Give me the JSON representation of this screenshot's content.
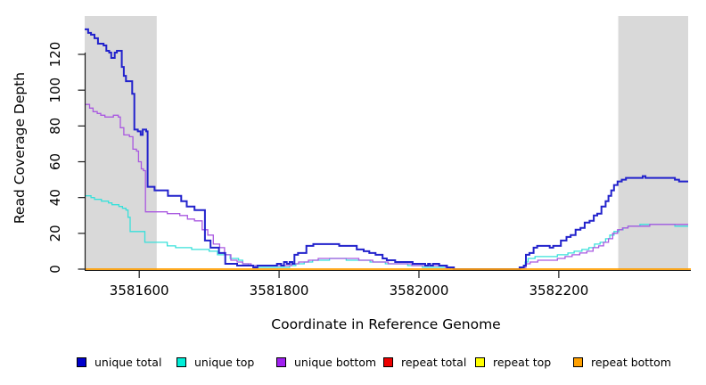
{
  "chart_data": {
    "type": "line",
    "subtype": "step-after",
    "title": "",
    "xlabel": "Coordinate in Reference Genome",
    "ylabel": "Read Coverage Depth",
    "xlim": [
      3581522,
      3582385
    ],
    "ylim": [
      0,
      141
    ],
    "x_ticks": [
      3581600,
      3581800,
      3582000,
      3582200
    ],
    "y_ticks": [
      0,
      20,
      40,
      60,
      80,
      100,
      120
    ],
    "grid": false,
    "legend_position": "bottom",
    "plot_bg": "#ffffff",
    "shaded_regions": [
      {
        "x0": 3581522,
        "x1": 3581625,
        "color": "#d9d9d9"
      },
      {
        "x0": 3582285,
        "x1": 3582385,
        "color": "#d9d9d9"
      }
    ],
    "draw_order": [
      "unique top",
      "unique bottom",
      "unique total",
      "repeat total",
      "repeat top",
      "repeat bottom"
    ],
    "series": [
      {
        "name": "unique total",
        "color": "#2222cc",
        "legend_color": "#0000cc",
        "width": 2,
        "points": [
          [
            3581522,
            134
          ],
          [
            3581527,
            132
          ],
          [
            3581531,
            131
          ],
          [
            3581536,
            129
          ],
          [
            3581541,
            126
          ],
          [
            3581549,
            125
          ],
          [
            3581553,
            122
          ],
          [
            3581557,
            121
          ],
          [
            3581560,
            118
          ],
          [
            3581565,
            121
          ],
          [
            3581568,
            122
          ],
          [
            3581575,
            113
          ],
          [
            3581578,
            108
          ],
          [
            3581581,
            105
          ],
          [
            3581590,
            98
          ],
          [
            3581593,
            78
          ],
          [
            3581598,
            77
          ],
          [
            3581602,
            75
          ],
          [
            3581605,
            78
          ],
          [
            3581610,
            77
          ],
          [
            3581612,
            46
          ],
          [
            3581622,
            44
          ],
          [
            3581641,
            41
          ],
          [
            3581660,
            38
          ],
          [
            3581668,
            35
          ],
          [
            3581679,
            33
          ],
          [
            3581694,
            16
          ],
          [
            3581702,
            12
          ],
          [
            3581714,
            9
          ],
          [
            3581723,
            3
          ],
          [
            3581740,
            2
          ],
          [
            3581763,
            1
          ],
          [
            3581769,
            2
          ],
          [
            3581797,
            3
          ],
          [
            3581803,
            2
          ],
          [
            3581807,
            4
          ],
          [
            3581811,
            3
          ],
          [
            3581815,
            4
          ],
          [
            3581819,
            3
          ],
          [
            3581822,
            8
          ],
          [
            3581827,
            9
          ],
          [
            3581839,
            13
          ],
          [
            3581849,
            14
          ],
          [
            3581886,
            13
          ],
          [
            3581911,
            11
          ],
          [
            3581921,
            10
          ],
          [
            3581929,
            9
          ],
          [
            3581938,
            8
          ],
          [
            3581948,
            6
          ],
          [
            3581954,
            5
          ],
          [
            3581966,
            4
          ],
          [
            3581991,
            3
          ],
          [
            3582009,
            2
          ],
          [
            3582013,
            3
          ],
          [
            3582016,
            2
          ],
          [
            3582020,
            3
          ],
          [
            3582029,
            2
          ],
          [
            3582040,
            1
          ],
          [
            3582050,
            0
          ],
          [
            3582144,
            1
          ],
          [
            3582150,
            2
          ],
          [
            3582153,
            8
          ],
          [
            3582158,
            9
          ],
          [
            3582164,
            12
          ],
          [
            3582169,
            13
          ],
          [
            3582187,
            12
          ],
          [
            3582192,
            13
          ],
          [
            3582203,
            16
          ],
          [
            3582211,
            18
          ],
          [
            3582217,
            19
          ],
          [
            3582224,
            22
          ],
          [
            3582231,
            23
          ],
          [
            3582237,
            26
          ],
          [
            3582244,
            27
          ],
          [
            3582250,
            30
          ],
          [
            3582255,
            31
          ],
          [
            3582261,
            35
          ],
          [
            3582267,
            38
          ],
          [
            3582271,
            41
          ],
          [
            3582275,
            44
          ],
          [
            3582279,
            47
          ],
          [
            3582284,
            49
          ],
          [
            3582290,
            50
          ],
          [
            3582296,
            51
          ],
          [
            3582320,
            52
          ],
          [
            3582324,
            51
          ],
          [
            3582366,
            50
          ],
          [
            3582372,
            49
          ],
          [
            3582385,
            49
          ]
        ]
      },
      {
        "name": "unique top",
        "color": "#38e0da",
        "legend_color": "#00eed8",
        "width": 1.3,
        "points": [
          [
            3581522,
            41
          ],
          [
            3581531,
            40
          ],
          [
            3581536,
            39
          ],
          [
            3581546,
            38
          ],
          [
            3581556,
            37
          ],
          [
            3581561,
            36
          ],
          [
            3581571,
            35
          ],
          [
            3581576,
            34
          ],
          [
            3581581,
            33
          ],
          [
            3581584,
            29
          ],
          [
            3581587,
            21
          ],
          [
            3581608,
            15
          ],
          [
            3581640,
            13
          ],
          [
            3581652,
            12
          ],
          [
            3581675,
            11
          ],
          [
            3581700,
            10
          ],
          [
            3581712,
            8
          ],
          [
            3581730,
            6
          ],
          [
            3581742,
            5
          ],
          [
            3581748,
            3
          ],
          [
            3581756,
            2
          ],
          [
            3581766,
            1
          ],
          [
            3581815,
            2
          ],
          [
            3581824,
            3
          ],
          [
            3581836,
            4
          ],
          [
            3581848,
            5
          ],
          [
            3581872,
            6
          ],
          [
            3581896,
            5
          ],
          [
            3581930,
            4
          ],
          [
            3581952,
            3
          ],
          [
            3581984,
            2
          ],
          [
            3582005,
            1
          ],
          [
            3582045,
            0
          ],
          [
            3582147,
            1
          ],
          [
            3582152,
            4
          ],
          [
            3582156,
            6
          ],
          [
            3582166,
            7
          ],
          [
            3582198,
            8
          ],
          [
            3582213,
            9
          ],
          [
            3582222,
            10
          ],
          [
            3582233,
            11
          ],
          [
            3582243,
            12
          ],
          [
            3582251,
            14
          ],
          [
            3582259,
            15
          ],
          [
            3582267,
            17
          ],
          [
            3582273,
            19
          ],
          [
            3582279,
            21
          ],
          [
            3582286,
            22
          ],
          [
            3582292,
            23
          ],
          [
            3582299,
            24
          ],
          [
            3582316,
            25
          ],
          [
            3582366,
            24
          ],
          [
            3582385,
            24
          ]
        ]
      },
      {
        "name": "unique bottom",
        "color": "#a958e0",
        "legend_color": "#a020f0",
        "width": 1.3,
        "points": [
          [
            3581522,
            92
          ],
          [
            3581529,
            90
          ],
          [
            3581534,
            88
          ],
          [
            3581540,
            87
          ],
          [
            3581545,
            86
          ],
          [
            3581551,
            85
          ],
          [
            3581559,
            85
          ],
          [
            3581563,
            86
          ],
          [
            3581570,
            85
          ],
          [
            3581573,
            79
          ],
          [
            3581578,
            75
          ],
          [
            3581586,
            74
          ],
          [
            3581591,
            67
          ],
          [
            3581596,
            66
          ],
          [
            3581599,
            60
          ],
          [
            3581603,
            56
          ],
          [
            3581606,
            55
          ],
          [
            3581609,
            32
          ],
          [
            3581640,
            31
          ],
          [
            3581658,
            30
          ],
          [
            3581669,
            28
          ],
          [
            3581679,
            27
          ],
          [
            3581690,
            22
          ],
          [
            3581698,
            19
          ],
          [
            3581706,
            14
          ],
          [
            3581715,
            12
          ],
          [
            3581722,
            8
          ],
          [
            3581731,
            5
          ],
          [
            3581740,
            4
          ],
          [
            3581748,
            3
          ],
          [
            3581760,
            2
          ],
          [
            3581812,
            2
          ],
          [
            3581818,
            3
          ],
          [
            3581828,
            4
          ],
          [
            3581842,
            5
          ],
          [
            3581856,
            6
          ],
          [
            3581894,
            6
          ],
          [
            3581914,
            5
          ],
          [
            3581934,
            4
          ],
          [
            3581956,
            3
          ],
          [
            3581990,
            2
          ],
          [
            3582038,
            1
          ],
          [
            3582048,
            0
          ],
          [
            3582146,
            1
          ],
          [
            3582153,
            3
          ],
          [
            3582159,
            4
          ],
          [
            3582170,
            5
          ],
          [
            3582198,
            6
          ],
          [
            3582209,
            7
          ],
          [
            3582219,
            8
          ],
          [
            3582230,
            9
          ],
          [
            3582240,
            10
          ],
          [
            3582249,
            12
          ],
          [
            3582257,
            13
          ],
          [
            3582264,
            15
          ],
          [
            3582271,
            17
          ],
          [
            3582277,
            20
          ],
          [
            3582284,
            22
          ],
          [
            3582291,
            23
          ],
          [
            3582299,
            24
          ],
          [
            3582330,
            25
          ],
          [
            3582385,
            25
          ]
        ]
      },
      {
        "name": "repeat total",
        "color": "#ee0000",
        "legend_color": "#ee0000",
        "width": 1,
        "points": [
          [
            3581522,
            0
          ],
          [
            3582385,
            0
          ]
        ]
      },
      {
        "name": "repeat top",
        "color": "#ffff00",
        "legend_color": "#ffff00",
        "width": 1,
        "points": [
          [
            3581522,
            0
          ],
          [
            3582385,
            0
          ]
        ]
      },
      {
        "name": "repeat bottom",
        "color": "#ff9e00",
        "legend_color": "#ffa000",
        "width": 1.8,
        "points": [
          [
            3581522,
            0
          ],
          [
            3582385,
            0
          ]
        ]
      }
    ]
  }
}
